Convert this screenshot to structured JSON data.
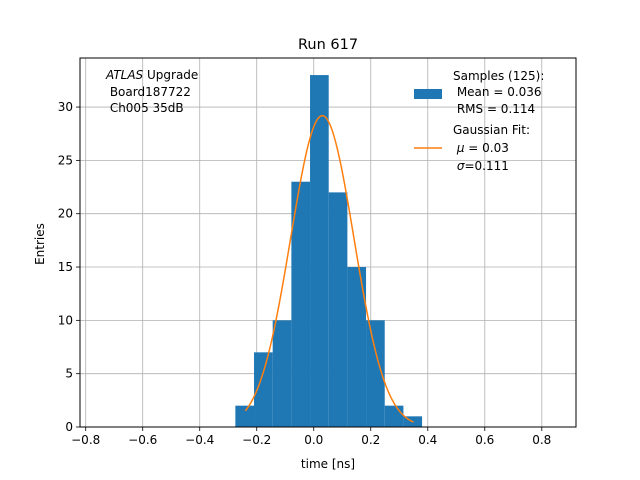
{
  "chart_data": {
    "type": "bar",
    "title": "Run 617",
    "xlabel": "time [ns]",
    "ylabel": "Entries",
    "xlim": [
      -0.82,
      0.92
    ],
    "ylim": [
      0,
      34.6
    ],
    "grid": true,
    "xticks": [
      -0.8,
      -0.6,
      -0.4,
      -0.2,
      0.0,
      0.2,
      0.4,
      0.6,
      0.8
    ],
    "xtick_labels": [
      "−0.8",
      "−0.6",
      "−0.4",
      "−0.2",
      "0.0",
      "0.2",
      "0.4",
      "0.6",
      "0.8"
    ],
    "yticks": [
      0,
      5,
      10,
      15,
      20,
      25,
      30
    ],
    "ytick_labels": [
      "0",
      "5",
      "10",
      "15",
      "20",
      "25",
      "30"
    ],
    "histogram": {
      "name": "Samples (125):",
      "color": "#1f77b4",
      "bin_edges": [
        -0.275,
        -0.2095,
        -0.144,
        -0.0785,
        -0.013,
        0.0525,
        0.118,
        0.1835,
        0.249,
        0.3145,
        0.38
      ],
      "counts": [
        2,
        7,
        10,
        23,
        33,
        22,
        15,
        10,
        2,
        1
      ]
    },
    "fit": {
      "name": "Gaussian Fit:",
      "color": "#ff7f0e",
      "mu": 0.03,
      "sigma": 0.111,
      "amplitude": 29.2,
      "x_range": [
        -0.24,
        0.35
      ]
    },
    "annotation": {
      "italic_part": "ATLAS",
      "rest": " Upgrade",
      "line2": " Board187722",
      "line3": " Ch005 35dB"
    },
    "legend": {
      "placement": "top-right",
      "hist_label": "Samples (125):",
      "hist_line2": " Mean = 0.036",
      "hist_line3": " RMS = 0.114",
      "fit_label": "Gaussian Fit:",
      "fit_mu_symbol": "μ",
      "fit_mu_text": " = 0.03",
      "fit_sigma_symbol": "σ",
      "fit_sigma_text": "=0.111"
    }
  }
}
